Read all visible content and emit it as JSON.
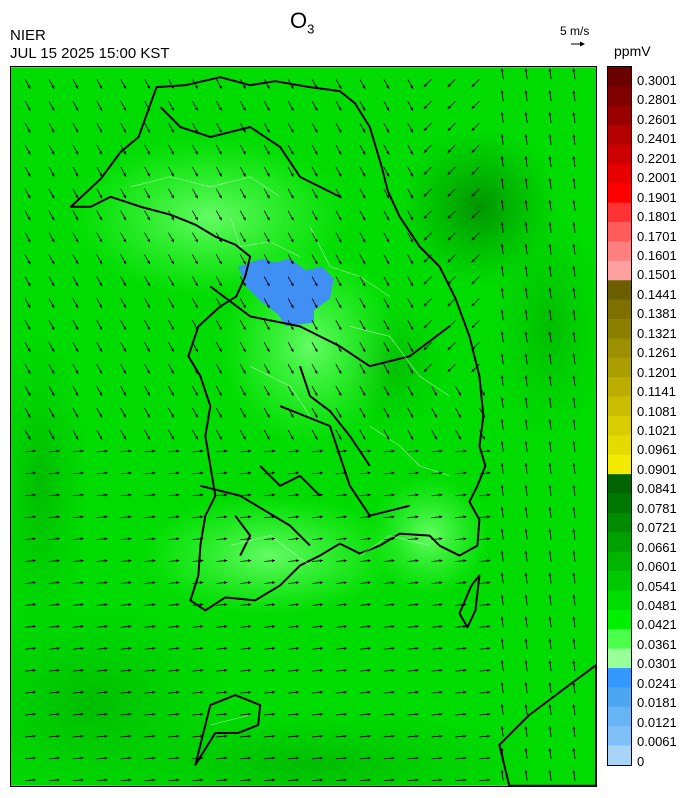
{
  "title": {
    "main": "O",
    "sub": "3"
  },
  "org": "NIER",
  "datetime": "JUL 15 2025 15:00 KST",
  "wind_reference": "5 m/s",
  "unit": "ppmV",
  "legend": {
    "labels": [
      "0.3001",
      "0.2801",
      "0.2601",
      "0.2401",
      "0.2201",
      "0.2001",
      "0.1901",
      "0.1801",
      "0.1701",
      "0.1601",
      "0.1501",
      "0.1441",
      "0.1381",
      "0.1321",
      "0.1261",
      "0.1201",
      "0.1141",
      "0.1081",
      "0.1021",
      "0.0961",
      "0.0901",
      "0.0841",
      "0.0781",
      "0.0721",
      "0.0661",
      "0.0601",
      "0.0541",
      "0.0481",
      "0.0421",
      "0.0361",
      "0.0301",
      "0.0241",
      "0.0181",
      "0.0121",
      "0.0061",
      "0"
    ],
    "colors": [
      "#6b0000",
      "#800000",
      "#990000",
      "#b30000",
      "#cc0000",
      "#e60000",
      "#ff0000",
      "#ff3333",
      "#ff5b5b",
      "#ff7f7f",
      "#ffa0a0",
      "#6b5e00",
      "#7d6f00",
      "#8c7f00",
      "#9c8f00",
      "#ab9e00",
      "#bbae00",
      "#cabd00",
      "#d9cc00",
      "#e6db00",
      "#f2ea00",
      "#006400",
      "#007800",
      "#008c00",
      "#00a000",
      "#00b400",
      "#00c800",
      "#00dc00",
      "#00f000",
      "#4cff4c",
      "#99ff99",
      "#3399ff",
      "#4da6f0",
      "#66b3f5",
      "#80c0f8",
      "#a8d4f8"
    ]
  }
}
